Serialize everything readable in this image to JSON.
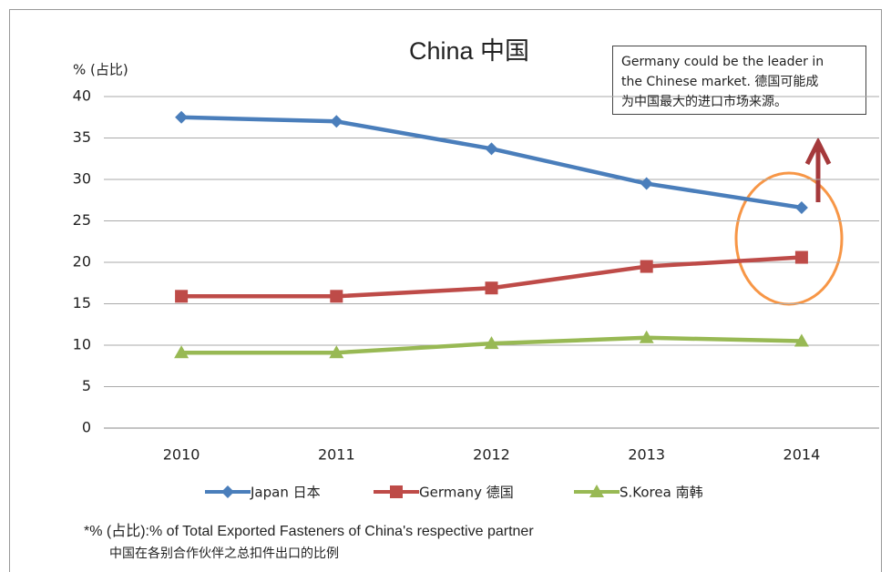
{
  "chart_data": {
    "type": "line",
    "title": "China 中国",
    "y_label": "% (占比)",
    "categories": [
      "2010",
      "2011",
      "2012",
      "2013",
      "2014"
    ],
    "series": [
      {
        "name": "Japan 日本",
        "color": "#4a7ebb",
        "marker": "diamond",
        "values": [
          37.5,
          37,
          33.7,
          29.5,
          26.6
        ]
      },
      {
        "name": "Germany 德国",
        "color": "#be4b48",
        "marker": "square",
        "values": [
          15.9,
          15.9,
          16.9,
          19.5,
          20.6
        ]
      },
      {
        "name": "S.Korea 南韩",
        "color": "#98b954",
        "marker": "triangle",
        "values": [
          9.1,
          9.1,
          10.2,
          10.9,
          10.5
        ]
      }
    ],
    "ylim": [
      0,
      40
    ],
    "yticks": [
      0,
      5,
      10,
      15,
      20,
      25,
      30,
      35,
      40
    ],
    "grid": true,
    "legend": "bottom",
    "annotation_lines": [
      "Germany could be the leader in",
      "the Chinese market. 德国可能成",
      "为中国最大的进口市场来源。"
    ],
    "footnote": [
      "*% (占比):% of Total Exported Fasteners of China's respective partner",
      "中国在各别合作伙伴之总扣件出口的比例"
    ]
  }
}
